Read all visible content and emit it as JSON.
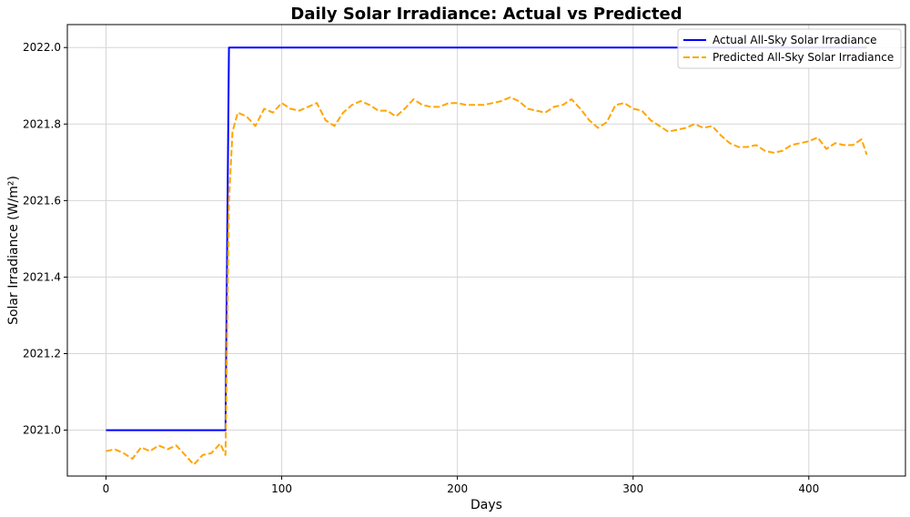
{
  "chart_data": {
    "type": "line",
    "title": "Daily Solar Irradiance: Actual vs Predicted",
    "xlabel": "Days",
    "ylabel": "Solar Irradiance (W/m²)",
    "xlim": [
      -22,
      455
    ],
    "ylim": [
      2020.88,
      2022.06
    ],
    "xticks": [
      0,
      100,
      200,
      300,
      400
    ],
    "yticks": [
      2021.0,
      2021.2,
      2021.4,
      2021.6,
      2021.8,
      2022.0
    ],
    "ytick_labels": [
      "2021.0",
      "2021.2",
      "2021.4",
      "2021.6",
      "2021.8",
      "2022.0"
    ],
    "xtick_labels": [
      "0",
      "100",
      "200",
      "300",
      "400"
    ],
    "grid": true,
    "legend_position": "top-right",
    "series": [
      {
        "name": "Actual All-Sky Solar Irradiance",
        "color": "#0000ff",
        "style": "solid",
        "x": [
          0,
          68,
          70,
          433
        ],
        "y": [
          2021.0,
          2021.0,
          2022.0,
          2022.0
        ]
      },
      {
        "name": "Predicted All-Sky Solar Irradiance",
        "color": "#ffa500",
        "style": "dashed",
        "x": [
          0,
          5,
          10,
          15,
          20,
          25,
          30,
          35,
          40,
          45,
          50,
          55,
          60,
          65,
          68,
          70,
          72,
          75,
          80,
          85,
          90,
          95,
          100,
          105,
          110,
          115,
          120,
          125,
          130,
          135,
          140,
          145,
          150,
          155,
          160,
          165,
          170,
          175,
          180,
          185,
          190,
          195,
          200,
          205,
          210,
          215,
          220,
          225,
          230,
          235,
          240,
          245,
          250,
          255,
          260,
          265,
          270,
          275,
          280,
          285,
          290,
          295,
          300,
          305,
          310,
          315,
          320,
          325,
          330,
          335,
          340,
          345,
          350,
          355,
          360,
          365,
          370,
          375,
          380,
          385,
          390,
          395,
          400,
          405,
          410,
          415,
          420,
          425,
          430,
          433
        ],
        "y": [
          2020.945,
          2020.95,
          2020.94,
          2020.925,
          2020.955,
          2020.945,
          2020.96,
          2020.95,
          2020.96,
          2020.935,
          2020.91,
          2020.935,
          2020.94,
          2020.965,
          2020.935,
          2021.6,
          2021.78,
          2021.83,
          2021.82,
          2021.795,
          2021.84,
          2021.83,
          2021.855,
          2021.84,
          2021.835,
          2021.845,
          2021.855,
          2021.81,
          2021.795,
          2021.83,
          2021.85,
          2021.86,
          2021.85,
          2021.835,
          2021.835,
          2021.82,
          2021.84,
          2021.865,
          2021.85,
          2021.845,
          2021.845,
          2021.855,
          2021.855,
          2021.85,
          2021.85,
          2021.85,
          2021.855,
          2021.86,
          2021.87,
          2021.86,
          2021.84,
          2021.835,
          2021.83,
          2021.845,
          2021.85,
          2021.865,
          2021.84,
          2021.81,
          2021.79,
          2021.805,
          2021.85,
          2021.855,
          2021.84,
          2021.835,
          2021.81,
          2021.795,
          2021.78,
          2021.785,
          2021.79,
          2021.8,
          2021.79,
          2021.795,
          2021.77,
          2021.75,
          2021.74,
          2021.74,
          2021.745,
          2021.73,
          2021.725,
          2021.73,
          2021.745,
          2021.75,
          2021.755,
          2021.765,
          2021.735,
          2021.75,
          2021.745,
          2021.745,
          2021.76,
          2021.72
        ]
      }
    ]
  }
}
